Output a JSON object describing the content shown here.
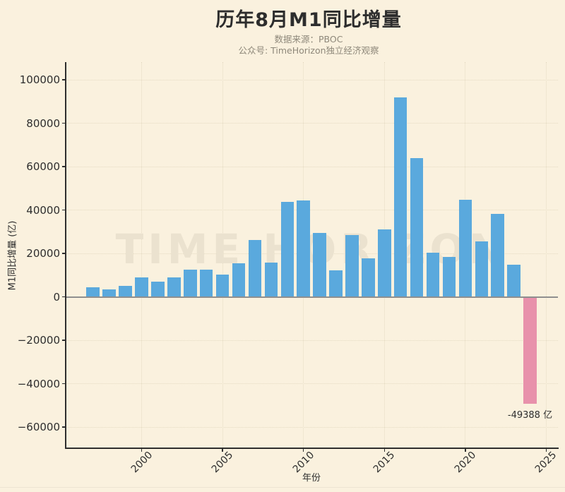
{
  "header": {
    "title": "历年8月M1同比增量",
    "subtitle1": "数据来源：PBOC",
    "subtitle2": "公众号: TimeHorizon独立经济观察"
  },
  "watermark": {
    "text": "TIME HORIZON"
  },
  "chart_data": {
    "type": "bar",
    "title": "历年8月M1同比增量",
    "xlabel": "年份",
    "ylabel": "M1同比增量 (亿)",
    "categories": [
      1997,
      1998,
      1999,
      2000,
      2001,
      2002,
      2003,
      2004,
      2005,
      2006,
      2007,
      2008,
      2009,
      2010,
      2011,
      2012,
      2013,
      2014,
      2015,
      2016,
      2017,
      2018,
      2019,
      2020,
      2021,
      2022,
      2023,
      2024
    ],
    "values": [
      4500,
      3400,
      5000,
      8800,
      7000,
      8900,
      12400,
      12400,
      10100,
      15500,
      26200,
      15900,
      43700,
      44300,
      29400,
      12300,
      28400,
      17800,
      31000,
      92000,
      63800,
      20400,
      18300,
      44800,
      25600,
      38100,
      14800,
      -49388
    ],
    "x_ticks": [
      2000,
      2005,
      2010,
      2015,
      2020,
      2025
    ],
    "y_ticks": [
      100000,
      80000,
      60000,
      40000,
      20000,
      0,
      -20000,
      -40000,
      -60000
    ],
    "ylim": [
      -69000,
      108000
    ],
    "grid": "dotted, both axes",
    "legend": "none",
    "annotation": "-49388 亿",
    "annotation_target_year": 2024,
    "colors": {
      "positive_bar": "#5AA9DD",
      "negative_bar": "#E891AB",
      "background": "#FAF1DE",
      "grid": "#E5DBC3",
      "zero_line": "#8F8F8F",
      "axis_text": "#2E2E2E",
      "muted_text": "#8E887A",
      "watermark": "#EBE2CF"
    }
  }
}
